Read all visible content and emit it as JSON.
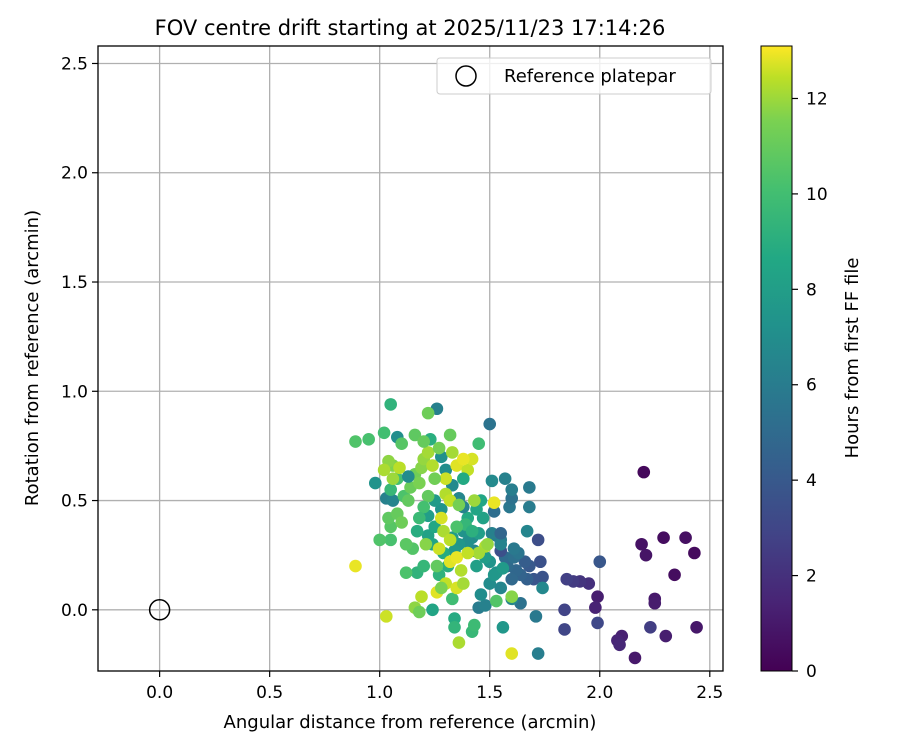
{
  "chart_data": {
    "type": "scatter",
    "title": "FOV centre drift starting at 2025/11/23 17:14:26",
    "xlabel": "Angular distance from reference (arcmin)",
    "ylabel": "Rotation from reference (arcmin)",
    "xlim": [
      -0.28,
      2.56
    ],
    "ylim": [
      -0.28,
      2.58
    ],
    "xticks": [
      {
        "v": 0.0,
        "label": "0.0"
      },
      {
        "v": 0.5,
        "label": "0.5"
      },
      {
        "v": 1.0,
        "label": "1.0"
      },
      {
        "v": 1.5,
        "label": "1.5"
      },
      {
        "v": 2.0,
        "label": "2.0"
      },
      {
        "v": 2.5,
        "label": "2.5"
      }
    ],
    "yticks": [
      {
        "v": 0.0,
        "label": "0.0"
      },
      {
        "v": 0.5,
        "label": "0.5"
      },
      {
        "v": 1.0,
        "label": "1.0"
      },
      {
        "v": 1.5,
        "label": "1.5"
      },
      {
        "v": 2.0,
        "label": "2.0"
      },
      {
        "v": 2.5,
        "label": "2.5"
      }
    ],
    "grid": true,
    "legend": {
      "position": "top-right",
      "entries": [
        {
          "label": "Reference platepar",
          "marker": "open-circle"
        }
      ]
    },
    "reference_point": {
      "x": 0.0,
      "y": 0.0
    },
    "colorbar": {
      "label": "Hours from first FF file",
      "colormap": "viridis",
      "range": [
        0,
        13.1
      ],
      "ticks": [
        {
          "v": 0,
          "label": "0"
        },
        {
          "v": 2,
          "label": "2"
        },
        {
          "v": 4,
          "label": "4"
        },
        {
          "v": 6,
          "label": "6"
        },
        {
          "v": 8,
          "label": "8"
        },
        {
          "v": 10,
          "label": "10"
        },
        {
          "v": 12,
          "label": "12"
        }
      ]
    },
    "points": [
      {
        "x": 2.2,
        "y": 0.63,
        "h": 0.3
      },
      {
        "x": 2.43,
        "y": 0.26,
        "h": 0.4
      },
      {
        "x": 2.39,
        "y": 0.33,
        "h": 0.6
      },
      {
        "x": 2.29,
        "y": 0.33,
        "h": 0.5
      },
      {
        "x": 2.19,
        "y": 0.3,
        "h": 0.7
      },
      {
        "x": 2.21,
        "y": 0.25,
        "h": 0.8
      },
      {
        "x": 2.34,
        "y": 0.16,
        "h": 0.5
      },
      {
        "x": 2.44,
        "y": -0.08,
        "h": 0.9
      },
      {
        "x": 2.25,
        "y": 0.05,
        "h": 1.0
      },
      {
        "x": 2.25,
        "y": 0.03,
        "h": 1.1
      },
      {
        "x": 2.3,
        "y": -0.12,
        "h": 1.2
      },
      {
        "x": 2.16,
        "y": -0.22,
        "h": 1.0
      },
      {
        "x": 2.1,
        "y": -0.12,
        "h": 1.3
      },
      {
        "x": 2.08,
        "y": -0.14,
        "h": 1.5
      },
      {
        "x": 2.09,
        "y": -0.16,
        "h": 1.6
      },
      {
        "x": 1.99,
        "y": 0.06,
        "h": 1.2
      },
      {
        "x": 1.98,
        "y": 0.01,
        "h": 1.4
      },
      {
        "x": 1.95,
        "y": 0.12,
        "h": 2.0
      },
      {
        "x": 1.91,
        "y": 0.13,
        "h": 2.2
      },
      {
        "x": 1.88,
        "y": 0.13,
        "h": 2.5
      },
      {
        "x": 1.85,
        "y": 0.14,
        "h": 2.7
      },
      {
        "x": 1.84,
        "y": 0.0,
        "h": 2.9
      },
      {
        "x": 1.84,
        "y": -0.09,
        "h": 3.0
      },
      {
        "x": 2.23,
        "y": -0.08,
        "h": 2.6
      },
      {
        "x": 1.99,
        "y": -0.06,
        "h": 3.1
      },
      {
        "x": 2.0,
        "y": 0.22,
        "h": 3.9
      },
      {
        "x": 1.72,
        "y": 0.32,
        "h": 3.4
      },
      {
        "x": 1.73,
        "y": 0.22,
        "h": 3.6
      },
      {
        "x": 1.74,
        "y": 0.15,
        "h": 3.7
      },
      {
        "x": 1.7,
        "y": 0.14,
        "h": 3.8
      },
      {
        "x": 1.68,
        "y": 0.2,
        "h": 4.0
      },
      {
        "x": 1.66,
        "y": 0.22,
        "h": 4.2
      },
      {
        "x": 1.67,
        "y": 0.14,
        "h": 4.4
      },
      {
        "x": 1.64,
        "y": 0.16,
        "h": 4.6
      },
      {
        "x": 1.62,
        "y": 0.18,
        "h": 4.8
      },
      {
        "x": 1.6,
        "y": 0.14,
        "h": 4.9
      },
      {
        "x": 1.58,
        "y": 0.2,
        "h": 5.0
      },
      {
        "x": 1.57,
        "y": 0.24,
        "h": 5.1
      },
      {
        "x": 1.55,
        "y": 0.27,
        "h": 3.5
      },
      {
        "x": 1.61,
        "y": 0.24,
        "h": 5.3
      },
      {
        "x": 1.63,
        "y": 0.26,
        "h": 5.6
      },
      {
        "x": 1.61,
        "y": 0.28,
        "h": 5.8
      },
      {
        "x": 1.55,
        "y": 0.32,
        "h": 5.9
      },
      {
        "x": 1.53,
        "y": 0.34,
        "h": 6.0
      },
      {
        "x": 1.51,
        "y": 0.35,
        "h": 6.2
      },
      {
        "x": 1.55,
        "y": 0.3,
        "h": 6.4
      },
      {
        "x": 1.55,
        "y": 0.35,
        "h": 4.7
      },
      {
        "x": 1.52,
        "y": 0.45,
        "h": 5.2
      },
      {
        "x": 1.59,
        "y": 0.47,
        "h": 5.7
      },
      {
        "x": 1.6,
        "y": 0.51,
        "h": 5.4
      },
      {
        "x": 1.6,
        "y": 0.55,
        "h": 6.1
      },
      {
        "x": 1.57,
        "y": 0.6,
        "h": 6.3
      },
      {
        "x": 1.51,
        "y": 0.59,
        "h": 6.8
      },
      {
        "x": 1.5,
        "y": 0.85,
        "h": 5.5
      },
      {
        "x": 1.68,
        "y": 0.56,
        "h": 5.9
      },
      {
        "x": 1.68,
        "y": 0.47,
        "h": 6.0
      },
      {
        "x": 1.67,
        "y": 0.36,
        "h": 6.5
      },
      {
        "x": 1.74,
        "y": 0.1,
        "h": 6.7
      },
      {
        "x": 1.64,
        "y": 0.03,
        "h": 5.4
      },
      {
        "x": 1.6,
        "y": 0.05,
        "h": 6.6
      },
      {
        "x": 1.71,
        "y": -0.03,
        "h": 5.8
      },
      {
        "x": 1.72,
        "y": -0.2,
        "h": 6.1
      },
      {
        "x": 1.56,
        "y": -0.08,
        "h": 7.6
      },
      {
        "x": 1.45,
        "y": 0.01,
        "h": 6.0
      },
      {
        "x": 1.48,
        "y": 0.02,
        "h": 6.3
      },
      {
        "x": 1.55,
        "y": 0.1,
        "h": 6.5
      },
      {
        "x": 1.5,
        "y": 0.12,
        "h": 6.9
      },
      {
        "x": 1.46,
        "y": 0.07,
        "h": 7.0
      },
      {
        "x": 1.53,
        "y": 0.17,
        "h": 7.2
      },
      {
        "x": 1.5,
        "y": 0.22,
        "h": 7.4
      },
      {
        "x": 1.52,
        "y": 0.16,
        "h": 7.6
      },
      {
        "x": 1.56,
        "y": 0.19,
        "h": 7.8
      },
      {
        "x": 1.48,
        "y": 0.24,
        "h": 7.9
      },
      {
        "x": 1.44,
        "y": 0.2,
        "h": 8.1
      },
      {
        "x": 1.43,
        "y": 0.27,
        "h": 6.7
      },
      {
        "x": 1.42,
        "y": 0.33,
        "h": 6.9
      },
      {
        "x": 1.4,
        "y": 0.31,
        "h": 7.1
      },
      {
        "x": 1.38,
        "y": 0.36,
        "h": 7.3
      },
      {
        "x": 1.36,
        "y": 0.3,
        "h": 7.5
      },
      {
        "x": 1.34,
        "y": 0.27,
        "h": 7.7
      },
      {
        "x": 1.33,
        "y": 0.33,
        "h": 7.9
      },
      {
        "x": 1.45,
        "y": 0.35,
        "h": 8.0
      },
      {
        "x": 1.47,
        "y": 0.42,
        "h": 8.2
      },
      {
        "x": 1.44,
        "y": 0.46,
        "h": 8.4
      },
      {
        "x": 1.46,
        "y": 0.5,
        "h": 8.5
      },
      {
        "x": 1.4,
        "y": 0.42,
        "h": 8.7
      },
      {
        "x": 1.38,
        "y": 0.47,
        "h": 6.4
      },
      {
        "x": 1.36,
        "y": 0.51,
        "h": 6.6
      },
      {
        "x": 1.33,
        "y": 0.57,
        "h": 6.8
      },
      {
        "x": 1.3,
        "y": 0.64,
        "h": 7.0
      },
      {
        "x": 1.28,
        "y": 0.7,
        "h": 7.2
      },
      {
        "x": 1.26,
        "y": 0.92,
        "h": 6.2
      },
      {
        "x": 1.23,
        "y": 0.78,
        "h": 9.0
      },
      {
        "x": 1.28,
        "y": 0.46,
        "h": 7.4
      },
      {
        "x": 1.25,
        "y": 0.5,
        "h": 7.8
      },
      {
        "x": 1.22,
        "y": 0.43,
        "h": 8.0
      },
      {
        "x": 1.22,
        "y": 0.34,
        "h": 8.2
      },
      {
        "x": 1.24,
        "y": 0.3,
        "h": 8.4
      },
      {
        "x": 1.25,
        "y": 0.38,
        "h": 8.6
      },
      {
        "x": 1.29,
        "y": 0.26,
        "h": 8.8
      },
      {
        "x": 1.31,
        "y": 0.2,
        "h": 9.0
      },
      {
        "x": 1.27,
        "y": 0.16,
        "h": 9.2
      },
      {
        "x": 1.24,
        "y": 0.0,
        "h": 8.4
      },
      {
        "x": 1.34,
        "y": -0.04,
        "h": 8.8
      },
      {
        "x": 1.34,
        "y": -0.08,
        "h": 9.4
      },
      {
        "x": 1.42,
        "y": -0.1,
        "h": 9.6
      },
      {
        "x": 1.43,
        "y": -0.07,
        "h": 9.8
      },
      {
        "x": 1.33,
        "y": 0.05,
        "h": 9.9
      },
      {
        "x": 1.17,
        "y": 0.17,
        "h": 9.3
      },
      {
        "x": 1.2,
        "y": 0.2,
        "h": 9.5
      },
      {
        "x": 1.12,
        "y": 0.17,
        "h": 10.3
      },
      {
        "x": 1.15,
        "y": 0.28,
        "h": 10.5
      },
      {
        "x": 1.12,
        "y": 0.3,
        "h": 10.7
      },
      {
        "x": 1.05,
        "y": 0.32,
        "h": 10.2
      },
      {
        "x": 1.0,
        "y": 0.32,
        "h": 10.4
      },
      {
        "x": 1.05,
        "y": 0.38,
        "h": 10.6
      },
      {
        "x": 1.04,
        "y": 0.42,
        "h": 10.8
      },
      {
        "x": 1.08,
        "y": 0.44,
        "h": 11.0
      },
      {
        "x": 1.1,
        "y": 0.4,
        "h": 11.2
      },
      {
        "x": 1.03,
        "y": 0.51,
        "h": 6.3
      },
      {
        "x": 1.06,
        "y": 0.5,
        "h": 6.5
      },
      {
        "x": 0.98,
        "y": 0.58,
        "h": 7.3
      },
      {
        "x": 1.05,
        "y": 0.55,
        "h": 9.6
      },
      {
        "x": 1.08,
        "y": 0.6,
        "h": 10.1
      },
      {
        "x": 1.11,
        "y": 0.52,
        "h": 10.3
      },
      {
        "x": 1.13,
        "y": 0.5,
        "h": 10.9
      },
      {
        "x": 1.14,
        "y": 0.56,
        "h": 11.1
      },
      {
        "x": 1.16,
        "y": 0.62,
        "h": 11.3
      },
      {
        "x": 1.18,
        "y": 0.58,
        "h": 11.5
      },
      {
        "x": 1.19,
        "y": 0.65,
        "h": 11.7
      },
      {
        "x": 1.2,
        "y": 0.69,
        "h": 11.9
      },
      {
        "x": 1.22,
        "y": 0.72,
        "h": 12.1
      },
      {
        "x": 1.24,
        "y": 0.66,
        "h": 12.3
      },
      {
        "x": 1.13,
        "y": 0.61,
        "h": 6.9
      },
      {
        "x": 1.08,
        "y": 0.79,
        "h": 7.1
      },
      {
        "x": 1.05,
        "y": 0.94,
        "h": 9.3
      },
      {
        "x": 1.02,
        "y": 0.81,
        "h": 10.0
      },
      {
        "x": 0.95,
        "y": 0.78,
        "h": 10.2
      },
      {
        "x": 0.89,
        "y": 0.77,
        "h": 10.4
      },
      {
        "x": 1.1,
        "y": 0.76,
        "h": 10.6
      },
      {
        "x": 1.16,
        "y": 0.8,
        "h": 10.8
      },
      {
        "x": 1.2,
        "y": 0.77,
        "h": 11.0
      },
      {
        "x": 1.22,
        "y": 0.9,
        "h": 11.2
      },
      {
        "x": 1.27,
        "y": 0.74,
        "h": 11.4
      },
      {
        "x": 1.32,
        "y": 0.8,
        "h": 11.0
      },
      {
        "x": 1.06,
        "y": 0.66,
        "h": 11.6
      },
      {
        "x": 1.04,
        "y": 0.68,
        "h": 11.8
      },
      {
        "x": 1.06,
        "y": 0.6,
        "h": 12.0
      },
      {
        "x": 1.02,
        "y": 0.64,
        "h": 12.2
      },
      {
        "x": 1.09,
        "y": 0.65,
        "h": 12.4
      },
      {
        "x": 1.3,
        "y": 0.6,
        "h": 12.6
      },
      {
        "x": 1.35,
        "y": 0.66,
        "h": 12.8
      },
      {
        "x": 1.4,
        "y": 0.64,
        "h": 12.5
      },
      {
        "x": 1.42,
        "y": 0.69,
        "h": 12.7
      },
      {
        "x": 1.38,
        "y": 0.69,
        "h": 12.9
      },
      {
        "x": 1.33,
        "y": 0.72,
        "h": 12.1
      },
      {
        "x": 1.3,
        "y": 0.53,
        "h": 12.3
      },
      {
        "x": 1.32,
        "y": 0.5,
        "h": 12.5
      },
      {
        "x": 1.43,
        "y": 0.5,
        "h": 12.0
      },
      {
        "x": 1.36,
        "y": 0.48,
        "h": 11.4
      },
      {
        "x": 1.28,
        "y": 0.42,
        "h": 12.7
      },
      {
        "x": 1.29,
        "y": 0.36,
        "h": 12.2
      },
      {
        "x": 1.32,
        "y": 0.32,
        "h": 12.4
      },
      {
        "x": 1.27,
        "y": 0.28,
        "h": 12.6
      },
      {
        "x": 1.32,
        "y": 0.22,
        "h": 12.8
      },
      {
        "x": 1.35,
        "y": 0.24,
        "h": 12.9
      },
      {
        "x": 1.37,
        "y": 0.18,
        "h": 12.3
      },
      {
        "x": 1.3,
        "y": 0.12,
        "h": 12.5
      },
      {
        "x": 1.35,
        "y": 0.1,
        "h": 12.7
      },
      {
        "x": 1.38,
        "y": 0.12,
        "h": 12.1
      },
      {
        "x": 1.26,
        "y": 0.08,
        "h": 12.8
      },
      {
        "x": 1.19,
        "y": 0.06,
        "h": 12.4
      },
      {
        "x": 1.16,
        "y": 0.01,
        "h": 11.8
      },
      {
        "x": 1.18,
        "y": -0.01,
        "h": 11.2
      },
      {
        "x": 1.03,
        "y": -0.03,
        "h": 12.6
      },
      {
        "x": 0.89,
        "y": 0.2,
        "h": 12.9
      },
      {
        "x": 1.36,
        "y": -0.15,
        "h": 12.2
      },
      {
        "x": 1.6,
        "y": -0.2,
        "h": 12.8
      },
      {
        "x": 1.6,
        "y": 0.06,
        "h": 11.7
      },
      {
        "x": 1.53,
        "y": 0.04,
        "h": 10.5
      },
      {
        "x": 1.52,
        "y": 0.49,
        "h": 12.9
      },
      {
        "x": 1.48,
        "y": 0.29,
        "h": 12.3
      },
      {
        "x": 1.49,
        "y": 0.3,
        "h": 11.9
      },
      {
        "x": 1.45,
        "y": 0.26,
        "h": 12.1
      },
      {
        "x": 1.4,
        "y": 0.26,
        "h": 12.5
      },
      {
        "x": 1.25,
        "y": 0.6,
        "h": 11.3
      },
      {
        "x": 1.22,
        "y": 0.52,
        "h": 10.9
      },
      {
        "x": 1.2,
        "y": 0.47,
        "h": 10.1
      },
      {
        "x": 1.18,
        "y": 0.42,
        "h": 9.7
      },
      {
        "x": 1.39,
        "y": 0.39,
        "h": 9.5
      },
      {
        "x": 1.42,
        "y": 0.36,
        "h": 9.1
      },
      {
        "x": 1.45,
        "y": 0.76,
        "h": 9.9
      },
      {
        "x": 1.38,
        "y": 0.6,
        "h": 8.7
      },
      {
        "x": 1.35,
        "y": 0.38,
        "h": 10.3
      },
      {
        "x": 1.26,
        "y": 0.2,
        "h": 10.9
      },
      {
        "x": 1.28,
        "y": 0.1,
        "h": 11.5
      },
      {
        "x": 1.21,
        "y": 0.3,
        "h": 11.7
      },
      {
        "x": 1.17,
        "y": 0.36,
        "h": 8.9
      }
    ]
  }
}
